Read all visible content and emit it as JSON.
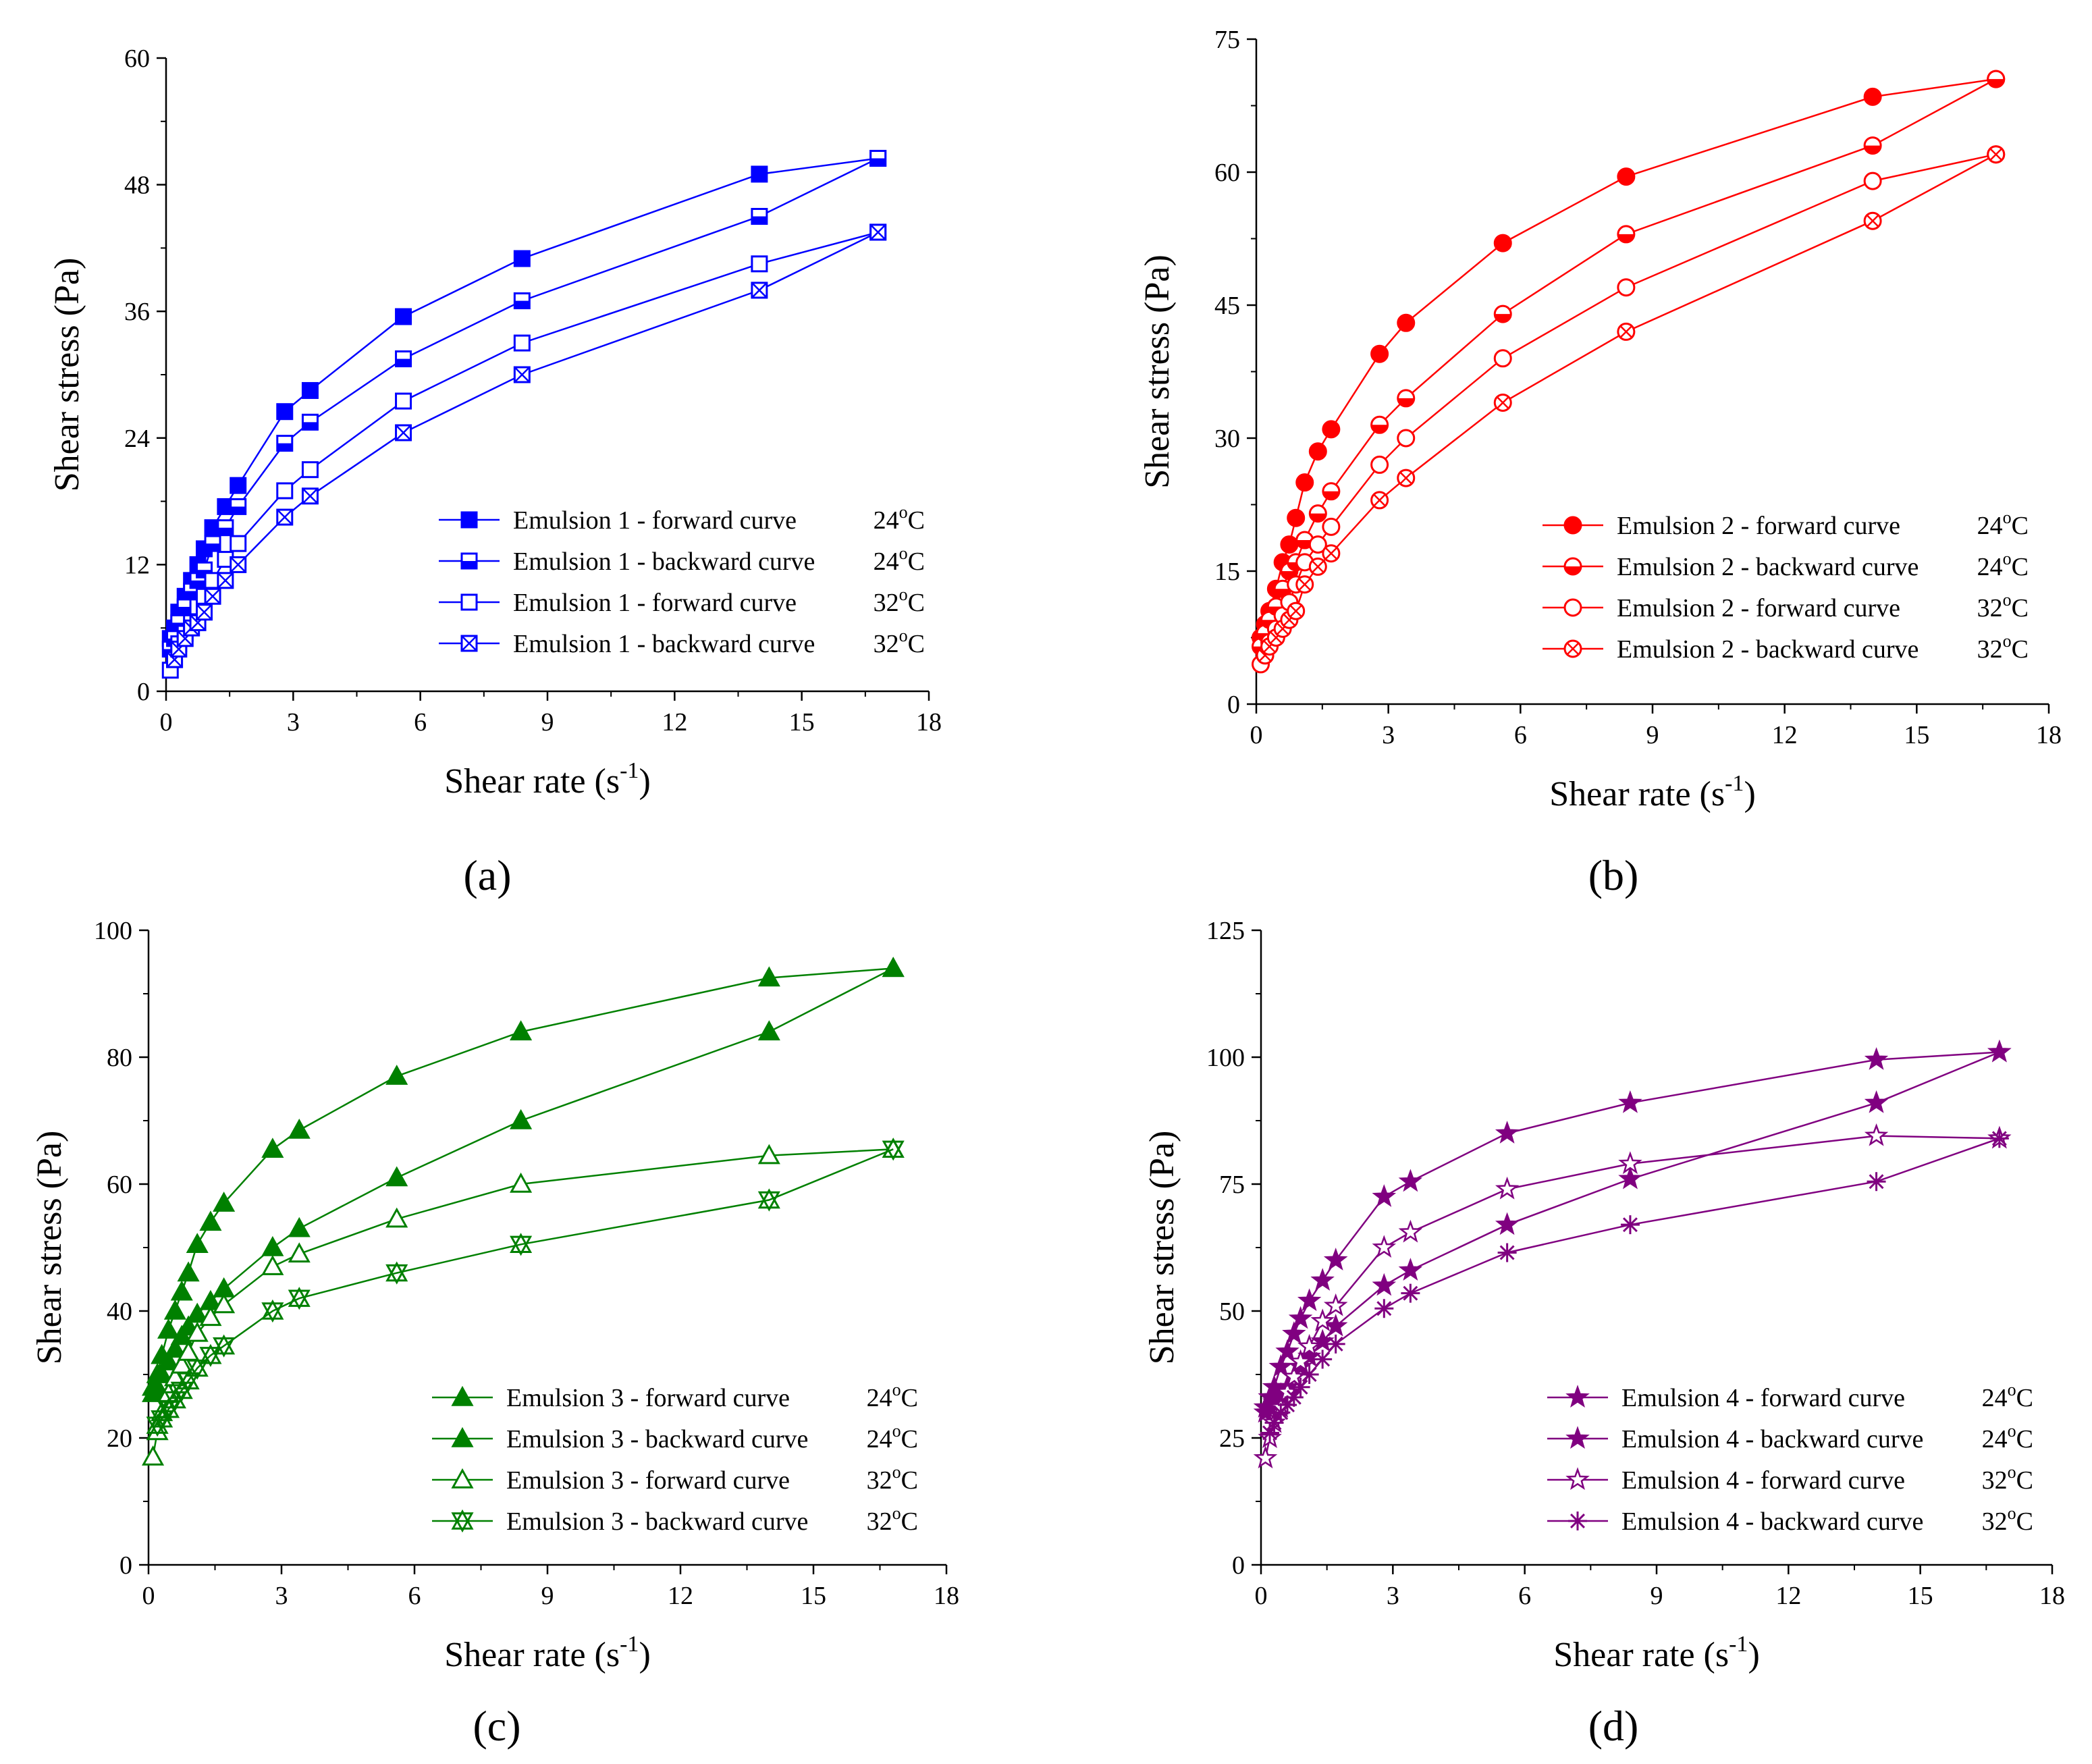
{
  "figure": {
    "panel_labels": [
      "(a)",
      "(b)",
      "(c)",
      "(d)"
    ]
  },
  "chart_data": [
    {
      "type": "scatter",
      "panel_label": "(a)",
      "ylabel": "Shear stress (Pa)",
      "xlabel_main": "Shear rate (s",
      "xlabel_sup": "-1",
      "xlabel_close": ")",
      "xlim": [
        0,
        18
      ],
      "ylim": [
        0,
        60
      ],
      "xticks": [
        0,
        3,
        6,
        9,
        12,
        15,
        18
      ],
      "yticks": [
        0,
        12,
        24,
        36,
        48,
        60
      ],
      "xtick_labels": [
        "0",
        "3",
        "6",
        "9",
        "12",
        "15",
        "18"
      ],
      "ytick_labels": [
        "0",
        "12",
        "24",
        "36",
        "48",
        "60"
      ],
      "color": "#0000ff",
      "series": [
        {
          "name": "Emulsion 1 - forward curve",
          "temp": "24",
          "marker": "filled-square",
          "x": [
            0.1,
            0.2,
            0.3,
            0.45,
            0.6,
            0.75,
            0.9,
            1.1,
            1.4,
            1.7,
            2.8,
            3.4,
            5.6,
            8.4,
            14.0,
            16.8
          ],
          "y": [
            5,
            6,
            7.5,
            9,
            10.5,
            12,
            13.5,
            15.5,
            17.5,
            19.5,
            26.5,
            28.5,
            35.5,
            41,
            49,
            50.5
          ]
        },
        {
          "name": "Emulsion 1 - backward curve",
          "temp": "24",
          "marker": "half-square",
          "x": [
            0.1,
            0.2,
            0.3,
            0.45,
            0.6,
            0.75,
            0.9,
            1.1,
            1.4,
            1.7,
            2.8,
            3.4,
            5.6,
            8.4,
            14.0,
            16.8
          ],
          "y": [
            4,
            5,
            6.5,
            8,
            9.5,
            10.5,
            11.5,
            14,
            15.5,
            17.5,
            23.5,
            25.5,
            31.5,
            37,
            45,
            50.5
          ]
        },
        {
          "name": "Emulsion 1 - forward curve",
          "temp": "32",
          "marker": "open-square",
          "x": [
            0.1,
            0.2,
            0.3,
            0.45,
            0.6,
            0.75,
            0.9,
            1.1,
            1.4,
            1.7,
            2.8,
            3.4,
            5.6,
            8.4,
            14.0,
            16.8
          ],
          "y": [
            2,
            3,
            4.5,
            5.5,
            6.5,
            8,
            9,
            10.5,
            12.5,
            14,
            19,
            21,
            27.5,
            33,
            40.5,
            43.5
          ]
        },
        {
          "name": "Emulsion 1 - backward curve",
          "temp": "32",
          "marker": "crossed-square",
          "x": [
            0.2,
            0.3,
            0.45,
            0.6,
            0.75,
            0.9,
            1.1,
            1.4,
            1.7,
            2.8,
            3.4,
            5.6,
            8.4,
            14.0,
            16.8
          ],
          "y": [
            3,
            4,
            5,
            6,
            6.5,
            7.5,
            9,
            10.5,
            12,
            16.5,
            18.5,
            24.5,
            30,
            38,
            43.5
          ]
        }
      ]
    },
    {
      "type": "scatter",
      "panel_label": "(b)",
      "ylabel": "Shear stress (Pa)",
      "xlabel_main": "Shear rate (s",
      "xlabel_sup": "-1",
      "xlabel_close": ")",
      "xlim": [
        0,
        18
      ],
      "ylim": [
        0,
        75
      ],
      "xticks": [
        0,
        3,
        6,
        9,
        12,
        15,
        18
      ],
      "yticks": [
        0,
        15,
        30,
        45,
        60,
        75
      ],
      "xtick_labels": [
        "0",
        "3",
        "6",
        "9",
        "12",
        "15",
        "18"
      ],
      "ytick_labels": [
        "0",
        "15",
        "30",
        "45",
        "60",
        "75"
      ],
      "color": "#ff0000",
      "series": [
        {
          "name": "Emulsion 2 - forward curve",
          "temp": "24",
          "marker": "filled-circle",
          "x": [
            0.1,
            0.2,
            0.3,
            0.45,
            0.6,
            0.75,
            0.9,
            1.1,
            1.4,
            1.7,
            2.8,
            3.4,
            5.6,
            8.4,
            14.0,
            16.8
          ],
          "y": [
            7.5,
            9,
            10.5,
            13,
            16,
            18,
            21,
            25,
            28.5,
            31,
            39.5,
            43,
            52,
            59.5,
            68.5,
            70.5
          ]
        },
        {
          "name": "Emulsion 2 - backward curve",
          "temp": "24",
          "marker": "half-circle",
          "x": [
            0.1,
            0.2,
            0.3,
            0.45,
            0.6,
            0.75,
            0.9,
            1.1,
            1.4,
            1.7,
            2.8,
            3.4,
            5.6,
            8.4,
            14.0,
            16.8
          ],
          "y": [
            6.5,
            8,
            9.5,
            11,
            13,
            15,
            16,
            18.5,
            21.5,
            24,
            31.5,
            34.5,
            44,
            53,
            63,
            70.5
          ]
        },
        {
          "name": "Emulsion 2 - forward curve",
          "temp": "32",
          "marker": "open-circle",
          "x": [
            0.1,
            0.2,
            0.3,
            0.45,
            0.6,
            0.75,
            0.9,
            1.1,
            1.4,
            1.7,
            2.8,
            3.4,
            5.6,
            8.4,
            14.0,
            16.8
          ],
          "y": [
            4.5,
            5.5,
            7,
            8.5,
            10,
            11.5,
            13.5,
            16,
            18,
            20,
            27,
            30,
            39,
            47,
            59,
            62
          ]
        },
        {
          "name": "Emulsion 2 - backward curve",
          "temp": "32",
          "marker": "crossed-circle",
          "x": [
            0.2,
            0.3,
            0.45,
            0.6,
            0.75,
            0.9,
            1.1,
            1.4,
            1.7,
            2.8,
            3.4,
            5.6,
            8.4,
            14.0,
            16.8
          ],
          "y": [
            5.5,
            6.5,
            7.5,
            8.5,
            9.5,
            10.5,
            13.5,
            15.5,
            17,
            23,
            25.5,
            34,
            42,
            54.5,
            62
          ]
        }
      ]
    },
    {
      "type": "scatter",
      "panel_label": "(c)",
      "ylabel": "Shear stress (Pa)",
      "xlabel_main": "Shear rate (s",
      "xlabel_sup": "-1",
      "xlabel_close": ")",
      "xlim": [
        0,
        18
      ],
      "ylim": [
        0,
        100
      ],
      "xticks": [
        0,
        3,
        6,
        9,
        12,
        15,
        18
      ],
      "yticks": [
        0,
        20,
        40,
        60,
        80,
        100
      ],
      "xtick_labels": [
        "0",
        "3",
        "6",
        "9",
        "12",
        "15",
        "18"
      ],
      "ytick_labels": [
        "0",
        "20",
        "40",
        "60",
        "80",
        "100"
      ],
      "color": "#008000",
      "series": [
        {
          "name": "Emulsion 3 - forward curve",
          "temp": "24",
          "marker": "filled-triangle",
          "x": [
            0.1,
            0.2,
            0.3,
            0.45,
            0.6,
            0.75,
            0.9,
            1.1,
            1.4,
            1.7,
            2.8,
            3.4,
            5.6,
            8.4,
            14.0,
            16.8
          ],
          "y": [
            28,
            30,
            33,
            37,
            40,
            43,
            46,
            50.5,
            54,
            57,
            65.5,
            68.5,
            77,
            84,
            92.5,
            94
          ]
        },
        {
          "name": "Emulsion 3 - backward curve",
          "temp": "24",
          "marker": "half-triangle",
          "x": [
            0.1,
            0.2,
            0.3,
            0.45,
            0.6,
            0.75,
            0.9,
            1.1,
            1.4,
            1.7,
            2.8,
            3.4,
            5.6,
            8.4,
            14.0,
            16.8
          ],
          "y": [
            27,
            28,
            30,
            32,
            34,
            36,
            37.5,
            39.5,
            41.5,
            43.5,
            50,
            53,
            61,
            70,
            84,
            94
          ]
        },
        {
          "name": "Emulsion 3 - forward curve",
          "temp": "32",
          "marker": "open-triangle",
          "x": [
            0.1,
            0.2,
            0.3,
            0.45,
            0.6,
            0.75,
            0.9,
            1.1,
            1.4,
            1.7,
            2.8,
            3.4,
            5.6,
            8.4,
            14.0,
            16.8
          ],
          "y": [
            17,
            21,
            24,
            27,
            29.5,
            31.5,
            33.5,
            36.5,
            39,
            41,
            47,
            49,
            54.5,
            60,
            64.5,
            65.5
          ]
        },
        {
          "name": "Emulsion 3 - backward curve",
          "temp": "32",
          "marker": "x-triangle",
          "x": [
            0.2,
            0.3,
            0.45,
            0.6,
            0.75,
            0.9,
            1.1,
            1.4,
            1.7,
            2.8,
            3.4,
            5.6,
            8.4,
            14.0,
            16.8
          ],
          "y": [
            22,
            23,
            24.5,
            26,
            27.5,
            29,
            31,
            33,
            34.5,
            40,
            42,
            46,
            50.5,
            57.5,
            65.5
          ]
        }
      ]
    },
    {
      "type": "scatter",
      "panel_label": "(d)",
      "ylabel": "Shear stress (Pa)",
      "xlabel_main": "Shear rate (s",
      "xlabel_sup": "-1",
      "xlabel_close": ")",
      "xlim": [
        0,
        18
      ],
      "ylim": [
        0,
        125
      ],
      "xticks": [
        0,
        3,
        6,
        9,
        12,
        15,
        18
      ],
      "yticks": [
        0,
        25,
        50,
        75,
        100,
        125
      ],
      "xtick_labels": [
        "0",
        "3",
        "6",
        "9",
        "12",
        "15",
        "18"
      ],
      "ytick_labels": [
        "0",
        "25",
        "50",
        "75",
        "100",
        "125"
      ],
      "color": "#800080",
      "series": [
        {
          "name": "Emulsion 4 - forward curve",
          "temp": "24",
          "marker": "filled-star",
          "x": [
            0.1,
            0.2,
            0.3,
            0.45,
            0.6,
            0.75,
            0.9,
            1.1,
            1.4,
            1.7,
            2.8,
            3.4,
            5.6,
            8.4,
            14.0,
            16.8
          ],
          "y": [
            31,
            33,
            35,
            39,
            42,
            45.5,
            48.5,
            52,
            56,
            60,
            72.5,
            75.5,
            85,
            91,
            99.5,
            101
          ]
        },
        {
          "name": "Emulsion 4 - backward curve",
          "temp": "24",
          "marker": "half-star",
          "x": [
            0.1,
            0.2,
            0.3,
            0.45,
            0.6,
            0.75,
            0.9,
            1.1,
            1.4,
            1.7,
            2.8,
            3.4,
            5.6,
            8.4,
            14.0,
            16.8
          ],
          "y": [
            30,
            31,
            32,
            33.5,
            35,
            37,
            39,
            41,
            44,
            47,
            55,
            58,
            67,
            76,
            91,
            101
          ]
        },
        {
          "name": "Emulsion 4 - forward curve",
          "temp": "32",
          "marker": "open-star",
          "x": [
            0.1,
            0.2,
            0.3,
            0.45,
            0.6,
            0.75,
            0.9,
            1.1,
            1.4,
            1.7,
            2.8,
            3.4,
            5.6,
            8.4,
            14.0,
            16.8
          ],
          "y": [
            21,
            25,
            28,
            31,
            34,
            37,
            40,
            43,
            48,
            51,
            62.5,
            65.5,
            74,
            79,
            84.5,
            84
          ]
        },
        {
          "name": "Emulsion 4 - backward curve",
          "temp": "32",
          "marker": "asterisk",
          "x": [
            0.2,
            0.3,
            0.45,
            0.6,
            0.75,
            0.9,
            1.1,
            1.4,
            1.7,
            2.8,
            3.4,
            5.6,
            8.4,
            14.0,
            16.8
          ],
          "y": [
            26,
            28,
            30,
            31.5,
            33,
            35,
            37.5,
            40.5,
            43.5,
            50.5,
            53.5,
            61.5,
            67,
            75.5,
            84
          ]
        }
      ]
    }
  ]
}
